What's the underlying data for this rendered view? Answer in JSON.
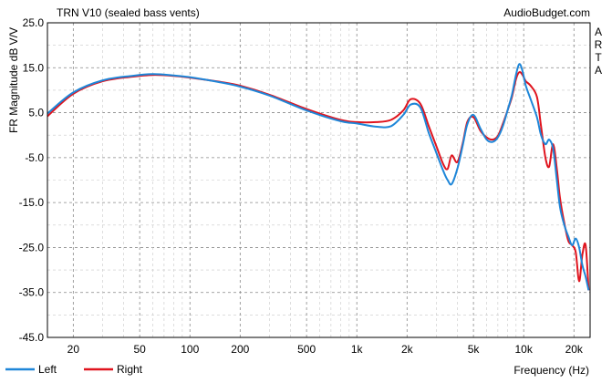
{
  "chart_data": {
    "type": "line",
    "title": "TRN V10 (sealed bass vents)",
    "watermark": "AudioBudget.com",
    "side_label": [
      "A",
      "R",
      "T",
      "A"
    ],
    "xlabel": "Frequency (Hz)",
    "ylabel": "FR Magnitude dB V/V",
    "x_scale": "log",
    "xlim": [
      14,
      25000
    ],
    "ylim": [
      -45,
      25
    ],
    "y_ticks": [
      25.0,
      15.0,
      5.0,
      -5.0,
      -15.0,
      -25.0,
      -35.0,
      -45.0
    ],
    "y_tick_labels": [
      "25.0",
      "15.0",
      "5.0",
      "-5.0",
      "-15.0",
      "-25.0",
      "-35.0",
      "-45.0"
    ],
    "x_ticks": [
      20,
      50,
      100,
      200,
      500,
      1000,
      2000,
      5000,
      10000,
      20000
    ],
    "x_tick_labels": [
      "20",
      "50",
      "100",
      "200",
      "500",
      "1k",
      "2k",
      "5k",
      "10k",
      "20k"
    ],
    "grid": true,
    "legend_position": "bottom-left",
    "series": [
      {
        "name": "Left",
        "color": "#1e86d8",
        "x": [
          14,
          20,
          30,
          45,
          60,
          80,
          100,
          150,
          200,
          300,
          500,
          800,
          1000,
          1300,
          1600,
          1900,
          2100,
          2400,
          2700,
          3000,
          3300,
          3500,
          3700,
          4000,
          4300,
          4600,
          5000,
          5500,
          6000,
          6500,
          7000,
          7500,
          8000,
          8500,
          9000,
          9400,
          9800,
          10300,
          11000,
          12000,
          12700,
          13500,
          14200,
          15000,
          15800,
          16500,
          17500,
          18500,
          19500,
          20500,
          21500,
          22500,
          23500,
          24500
        ],
        "y": [
          4.8,
          9.5,
          12.2,
          13.2,
          13.6,
          13.3,
          12.9,
          11.8,
          10.8,
          8.8,
          5.5,
          3.1,
          2.6,
          1.9,
          2.0,
          4.5,
          6.8,
          6.2,
          0.5,
          -4.0,
          -8.0,
          -10.0,
          -10.9,
          -7.5,
          -2.5,
          2.5,
          4.5,
          1.5,
          -1.0,
          -1.5,
          -0.5,
          2.0,
          5.5,
          9.0,
          13.5,
          15.8,
          14.5,
          11.0,
          8.0,
          4.0,
          0.0,
          -2.0,
          -1.0,
          -3.0,
          -10.0,
          -16.0,
          -20.0,
          -22.5,
          -24.5,
          -23.0,
          -25.0,
          -29.0,
          -31.5,
          -34.5
        ]
      },
      {
        "name": "Right",
        "color": "#e0141e",
        "x": [
          14,
          20,
          30,
          45,
          60,
          80,
          100,
          150,
          200,
          300,
          500,
          800,
          1000,
          1300,
          1600,
          1900,
          2100,
          2400,
          2700,
          3000,
          3300,
          3500,
          3700,
          4000,
          4300,
          4600,
          5000,
          5500,
          6000,
          6500,
          7000,
          7500,
          8000,
          8500,
          9000,
          9400,
          9800,
          10300,
          11000,
          12000,
          12700,
          13500,
          14200,
          15000,
          15800,
          16500,
          17500,
          18500,
          19500,
          20500,
          21500,
          22500,
          23500,
          24500
        ],
        "y": [
          4.2,
          9.2,
          12.0,
          13.0,
          13.4,
          13.2,
          12.8,
          11.9,
          11.0,
          9.0,
          5.8,
          3.4,
          2.9,
          2.9,
          3.4,
          5.5,
          8.0,
          7.0,
          2.0,
          -2.5,
          -6.5,
          -7.5,
          -4.5,
          -6.0,
          -2.0,
          3.0,
          4.0,
          1.0,
          -0.5,
          -1.0,
          -0.2,
          2.5,
          5.5,
          8.5,
          12.5,
          14.0,
          13.5,
          12.0,
          11.0,
          8.5,
          2.0,
          -5.0,
          -7.0,
          -2.0,
          -7.5,
          -14.0,
          -19.5,
          -23.5,
          -24.5,
          -26.0,
          -32.5,
          -26.5,
          -24.5,
          -34.5
        ]
      }
    ]
  }
}
